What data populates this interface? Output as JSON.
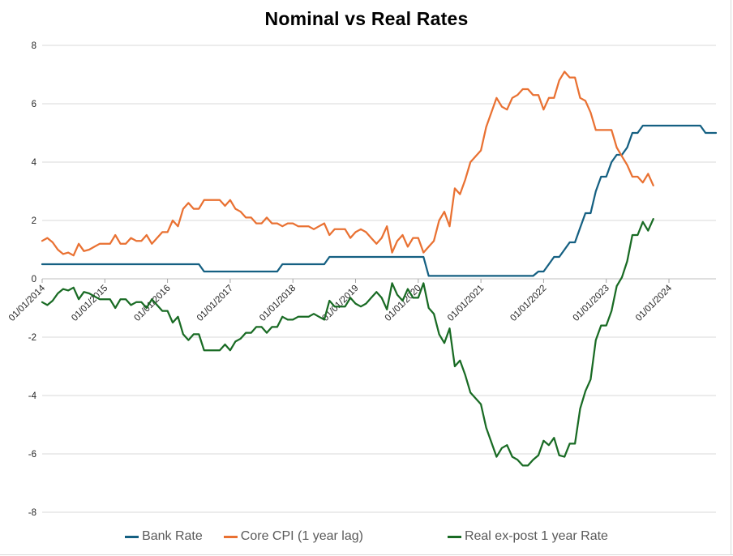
{
  "title": "Nominal vs Real Rates",
  "chart_data": {
    "type": "line",
    "title": "Nominal vs Real Rates",
    "x_start": "01/01/2014",
    "x_interval": "monthly",
    "x_tick_labels": [
      "01/01/2014",
      "01/01/2015",
      "01/01/2016",
      "01/01/2017",
      "01/01/2018",
      "01/01/2019",
      "01/01/2020",
      "01/01/2021",
      "01/01/2022",
      "01/01/2023",
      "01/01/2024"
    ],
    "y_ticks": [
      8,
      6,
      4,
      2,
      0,
      -2,
      -4,
      -6,
      -8
    ],
    "ylim": [
      -8,
      8
    ],
    "grid": "horizontal-only",
    "legend_position": "bottom",
    "axis_label_color": "#262626",
    "grid_color": "#d9d9d9",
    "series": [
      {
        "name": "Bank Rate",
        "color": "#156082",
        "values": [
          0.5,
          0.5,
          0.5,
          0.5,
          0.5,
          0.5,
          0.5,
          0.5,
          0.5,
          0.5,
          0.5,
          0.5,
          0.5,
          0.5,
          0.5,
          0.5,
          0.5,
          0.5,
          0.5,
          0.5,
          0.5,
          0.5,
          0.5,
          0.5,
          0.5,
          0.5,
          0.5,
          0.5,
          0.5,
          0.5,
          0.5,
          0.25,
          0.25,
          0.25,
          0.25,
          0.25,
          0.25,
          0.25,
          0.25,
          0.25,
          0.25,
          0.25,
          0.25,
          0.25,
          0.25,
          0.25,
          0.5,
          0.5,
          0.5,
          0.5,
          0.5,
          0.5,
          0.5,
          0.5,
          0.5,
          0.75,
          0.75,
          0.75,
          0.75,
          0.75,
          0.75,
          0.75,
          0.75,
          0.75,
          0.75,
          0.75,
          0.75,
          0.75,
          0.75,
          0.75,
          0.75,
          0.75,
          0.75,
          0.75,
          0.1,
          0.1,
          0.1,
          0.1,
          0.1,
          0.1,
          0.1,
          0.1,
          0.1,
          0.1,
          0.1,
          0.1,
          0.1,
          0.1,
          0.1,
          0.1,
          0.1,
          0.1,
          0.1,
          0.1,
          0.1,
          0.25,
          0.25,
          0.5,
          0.75,
          0.75,
          1.0,
          1.25,
          1.25,
          1.75,
          2.25,
          2.25,
          3.0,
          3.5,
          3.5,
          4.0,
          4.25,
          4.25,
          4.5,
          5.0,
          5.0,
          5.25,
          5.25,
          5.25,
          5.25,
          5.25,
          5.25,
          5.25,
          5.25,
          5.25,
          5.25,
          5.25,
          5.25,
          5.0,
          5.0,
          5.0
        ]
      },
      {
        "name": "Core CPI (1 year lag)",
        "color": "#E97132",
        "values": [
          1.3,
          1.4,
          1.25,
          1.0,
          0.85,
          0.9,
          0.8,
          1.2,
          0.95,
          1.0,
          1.1,
          1.2,
          1.2,
          1.2,
          1.5,
          1.2,
          1.2,
          1.4,
          1.3,
          1.3,
          1.5,
          1.2,
          1.4,
          1.6,
          1.6,
          2.0,
          1.8,
          2.4,
          2.6,
          2.4,
          2.4,
          2.7,
          2.7,
          2.7,
          2.7,
          2.5,
          2.7,
          2.4,
          2.3,
          2.1,
          2.1,
          1.9,
          1.9,
          2.1,
          1.9,
          1.9,
          1.8,
          1.9,
          1.9,
          1.8,
          1.8,
          1.8,
          1.7,
          1.8,
          1.9,
          1.5,
          1.7,
          1.7,
          1.7,
          1.4,
          1.6,
          1.7,
          1.6,
          1.4,
          1.2,
          1.4,
          1.8,
          0.9,
          1.3,
          1.5,
          1.1,
          1.4,
          1.4,
          0.9,
          1.1,
          1.3,
          2.0,
          2.3,
          1.8,
          3.1,
          2.9,
          3.4,
          4.0,
          4.2,
          4.4,
          5.2,
          5.7,
          6.2,
          5.9,
          5.8,
          6.2,
          6.3,
          6.5,
          6.5,
          6.3,
          6.3,
          5.8,
          6.2,
          6.2,
          6.8,
          7.1,
          6.9,
          6.9,
          6.2,
          6.1,
          5.7,
          5.1,
          5.1,
          5.1,
          5.1,
          4.5,
          4.2,
          3.9,
          3.5,
          3.5,
          3.3,
          3.6,
          3.2
        ]
      },
      {
        "name": "Real ex-post 1 year Rate",
        "color": "#196B24",
        "values": [
          -0.8,
          -0.9,
          -0.75,
          -0.5,
          -0.35,
          -0.4,
          -0.3,
          -0.7,
          -0.45,
          -0.5,
          -0.6,
          -0.7,
          -0.7,
          -0.7,
          -1.0,
          -0.7,
          -0.7,
          -0.9,
          -0.8,
          -0.8,
          -1.0,
          -0.7,
          -0.9,
          -1.1,
          -1.1,
          -1.5,
          -1.3,
          -1.9,
          -2.1,
          -1.9,
          -1.9,
          -2.45,
          -2.45,
          -2.45,
          -2.45,
          -2.25,
          -2.45,
          -2.15,
          -2.05,
          -1.85,
          -1.85,
          -1.65,
          -1.65,
          -1.85,
          -1.65,
          -1.65,
          -1.3,
          -1.4,
          -1.4,
          -1.3,
          -1.3,
          -1.3,
          -1.2,
          -1.3,
          -1.4,
          -0.75,
          -0.95,
          -0.95,
          -0.95,
          -0.65,
          -0.85,
          -0.95,
          -0.85,
          -0.65,
          -0.45,
          -0.65,
          -1.05,
          -0.15,
          -0.55,
          -0.75,
          -0.35,
          -0.65,
          -0.65,
          -0.15,
          -1.0,
          -1.2,
          -1.9,
          -2.2,
          -1.7,
          -3.0,
          -2.8,
          -3.3,
          -3.9,
          -4.1,
          -4.3,
          -5.1,
          -5.6,
          -6.1,
          -5.8,
          -5.7,
          -6.1,
          -6.2,
          -6.4,
          -6.4,
          -6.2,
          -6.05,
          -5.55,
          -5.7,
          -5.45,
          -6.05,
          -6.1,
          -5.65,
          -5.65,
          -4.45,
          -3.85,
          -3.45,
          -2.1,
          -1.6,
          -1.6,
          -1.1,
          -0.25,
          0.05,
          0.6,
          1.5,
          1.5,
          1.95,
          1.65,
          2.05
        ]
      }
    ]
  }
}
